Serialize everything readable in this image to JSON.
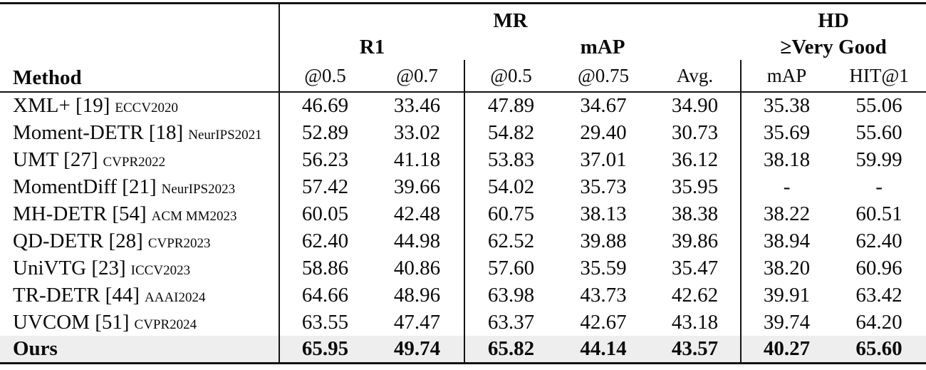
{
  "table": {
    "headers": {
      "method": "Method",
      "mr": "MR",
      "hd": "HD",
      "r1": "R1",
      "map": "mAP",
      "very_good": "≥Very Good",
      "leaf": [
        "@0.5",
        "@0.7",
        "@0.5",
        "@0.75",
        "Avg.",
        "mAP",
        "HIT@1"
      ]
    },
    "rows": [
      {
        "method": "XML+ [19]",
        "venue": "ECCV2020",
        "values": [
          "46.69",
          "33.46",
          "47.89",
          "34.67",
          "34.90",
          "35.38",
          "55.06"
        ],
        "bold": false,
        "highlight": false
      },
      {
        "method": "Moment-DETR [18]",
        "venue": "NeurIPS2021",
        "values": [
          "52.89",
          "33.02",
          "54.82",
          "29.40",
          "30.73",
          "35.69",
          "55.60"
        ],
        "bold": false,
        "highlight": false
      },
      {
        "method": "UMT [27]",
        "venue": "CVPR2022",
        "values": [
          "56.23",
          "41.18",
          "53.83",
          "37.01",
          "36.12",
          "38.18",
          "59.99"
        ],
        "bold": false,
        "highlight": false
      },
      {
        "method": "MomentDiff [21]",
        "venue": "NeurIPS2023",
        "values": [
          "57.42",
          "39.66",
          "54.02",
          "35.73",
          "35.95",
          "-",
          "-"
        ],
        "bold": false,
        "highlight": false
      },
      {
        "method": "MH-DETR [54]",
        "venue": "ACM MM2023",
        "values": [
          "60.05",
          "42.48",
          "60.75",
          "38.13",
          "38.38",
          "38.22",
          "60.51"
        ],
        "bold": false,
        "highlight": false
      },
      {
        "method": "QD-DETR [28]",
        "venue": "CVPR2023",
        "values": [
          "62.40",
          "44.98",
          "62.52",
          "39.88",
          "39.86",
          "38.94",
          "62.40"
        ],
        "bold": false,
        "highlight": false
      },
      {
        "method": "UniVTG [23]",
        "venue": "ICCV2023",
        "values": [
          "58.86",
          "40.86",
          "57.60",
          "35.59",
          "35.47",
          "38.20",
          "60.96"
        ],
        "bold": false,
        "highlight": false
      },
      {
        "method": "TR-DETR [44]",
        "venue": "AAAI2024",
        "values": [
          "64.66",
          "48.96",
          "63.98",
          "43.73",
          "42.62",
          "39.91",
          "63.42"
        ],
        "bold": false,
        "highlight": false
      },
      {
        "method": "UVCOM [51]",
        "venue": "CVPR2024",
        "values": [
          "63.55",
          "47.47",
          "63.37",
          "42.67",
          "43.18",
          "39.74",
          "64.20"
        ],
        "bold": false,
        "highlight": false
      },
      {
        "method": "Ours",
        "venue": "",
        "values": [
          "65.95",
          "49.74",
          "65.82",
          "44.14",
          "43.57",
          "40.27",
          "65.60"
        ],
        "bold": true,
        "highlight": true
      }
    ]
  },
  "colors": {
    "text": "#0a0a0a",
    "rule": "#141414",
    "highlight_bg": "#eeeeee"
  }
}
